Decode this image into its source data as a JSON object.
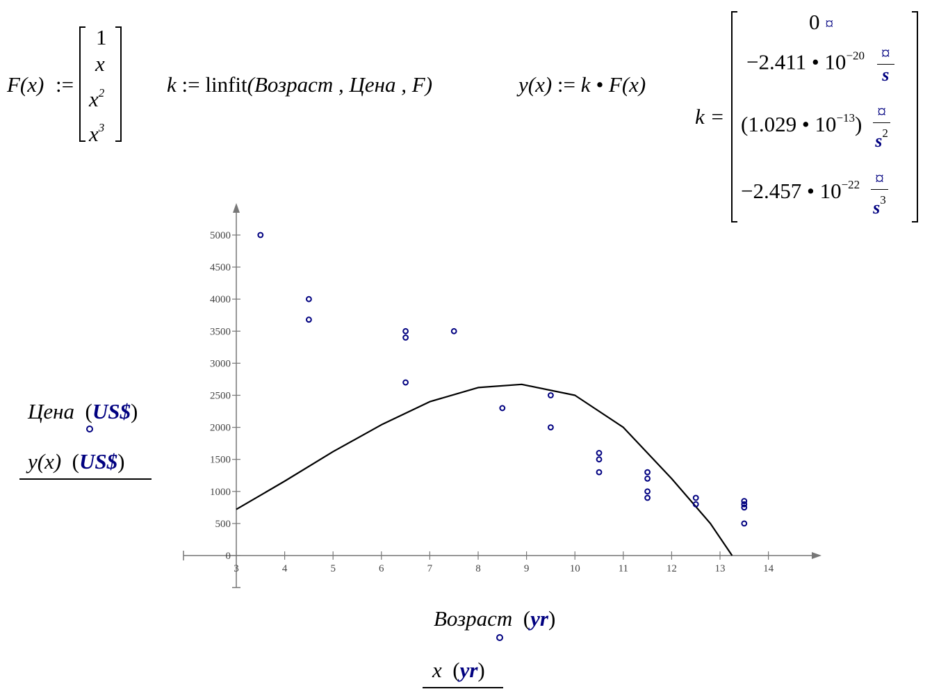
{
  "colors": {
    "data_point": "#000080",
    "curve": "#000000",
    "axis": "#777777",
    "unit": "#000080"
  },
  "formulas": {
    "F_def": {
      "lhs": "F(x)",
      "assign": ":=",
      "vector": [
        "1",
        "x",
        "x",
        "x"
      ],
      "exponents": [
        "",
        "",
        "2",
        "3"
      ]
    },
    "k_def": {
      "lhs": "k",
      "assign": ":=",
      "func": "linfit",
      "args": "(Возраст , Цена , F)"
    },
    "y_def": {
      "lhs": "y(x)",
      "assign": ":=",
      "rhs": "k • F(x)"
    },
    "k_result": {
      "lhs": "k",
      "eq": "=",
      "rows": [
        {
          "value": "0",
          "unit_num": "¤",
          "unit_den": ""
        },
        {
          "value": "−2.411 • 10",
          "exp": "−20",
          "unit_num": "¤",
          "unit_den": "s",
          "den_exp": ""
        },
        {
          "value": "(1.029 • 10",
          "exp": "−13",
          "close": ")",
          "unit_num": "¤",
          "unit_den": "s",
          "den_exp": "2"
        },
        {
          "value": "−2.457 • 10",
          "exp": "−22",
          "unit_num": "¤",
          "unit_den": "s",
          "den_exp": "3"
        }
      ]
    }
  },
  "plot": {
    "y_legend": [
      {
        "label": "Цена",
        "unit": "US$"
      },
      {
        "label": "y(x)",
        "unit": "US$"
      }
    ],
    "x_legend": [
      {
        "label": "Возраст",
        "unit": "yr"
      },
      {
        "label": "x",
        "unit": "yr"
      }
    ]
  },
  "chart_data": {
    "type": "scatter",
    "title": "",
    "xlabel": "Возраст (yr)",
    "ylabel": "Цена (US$)",
    "xlim": [
      3,
      14.9
    ],
    "ylim": [
      -500,
      5500
    ],
    "x_ticks": [
      3,
      4,
      5,
      6,
      7,
      8,
      9,
      10,
      11,
      12,
      13,
      14
    ],
    "y_ticks": [
      0,
      500,
      1000,
      1500,
      2000,
      2500,
      3000,
      3500,
      4000,
      4500,
      5000
    ],
    "series": [
      {
        "name": "Цена",
        "style": "points",
        "x": [
          3.5,
          4.5,
          4.5,
          6.5,
          6.5,
          6.5,
          7.5,
          8.5,
          9.5,
          9.5,
          10.5,
          10.5,
          10.5,
          11.5,
          11.5,
          11.5,
          11.5,
          12.5,
          12.5,
          13.5,
          13.5,
          13.5,
          13.5
        ],
        "y": [
          5000,
          4000,
          3680,
          3500,
          3400,
          2700,
          3500,
          2300,
          2500,
          2000,
          1600,
          1500,
          1300,
          1300,
          1200,
          1000,
          900,
          900,
          800,
          850,
          800,
          750,
          500
        ]
      },
      {
        "name": "y(x)",
        "style": "line",
        "x": [
          3,
          4,
          5,
          6,
          7,
          8,
          8.9,
          10,
          11,
          12,
          12.8,
          13.25
        ],
        "y": [
          720,
          1160,
          1620,
          2040,
          2400,
          2620,
          2670,
          2500,
          2000,
          1200,
          500,
          0
        ]
      }
    ]
  }
}
